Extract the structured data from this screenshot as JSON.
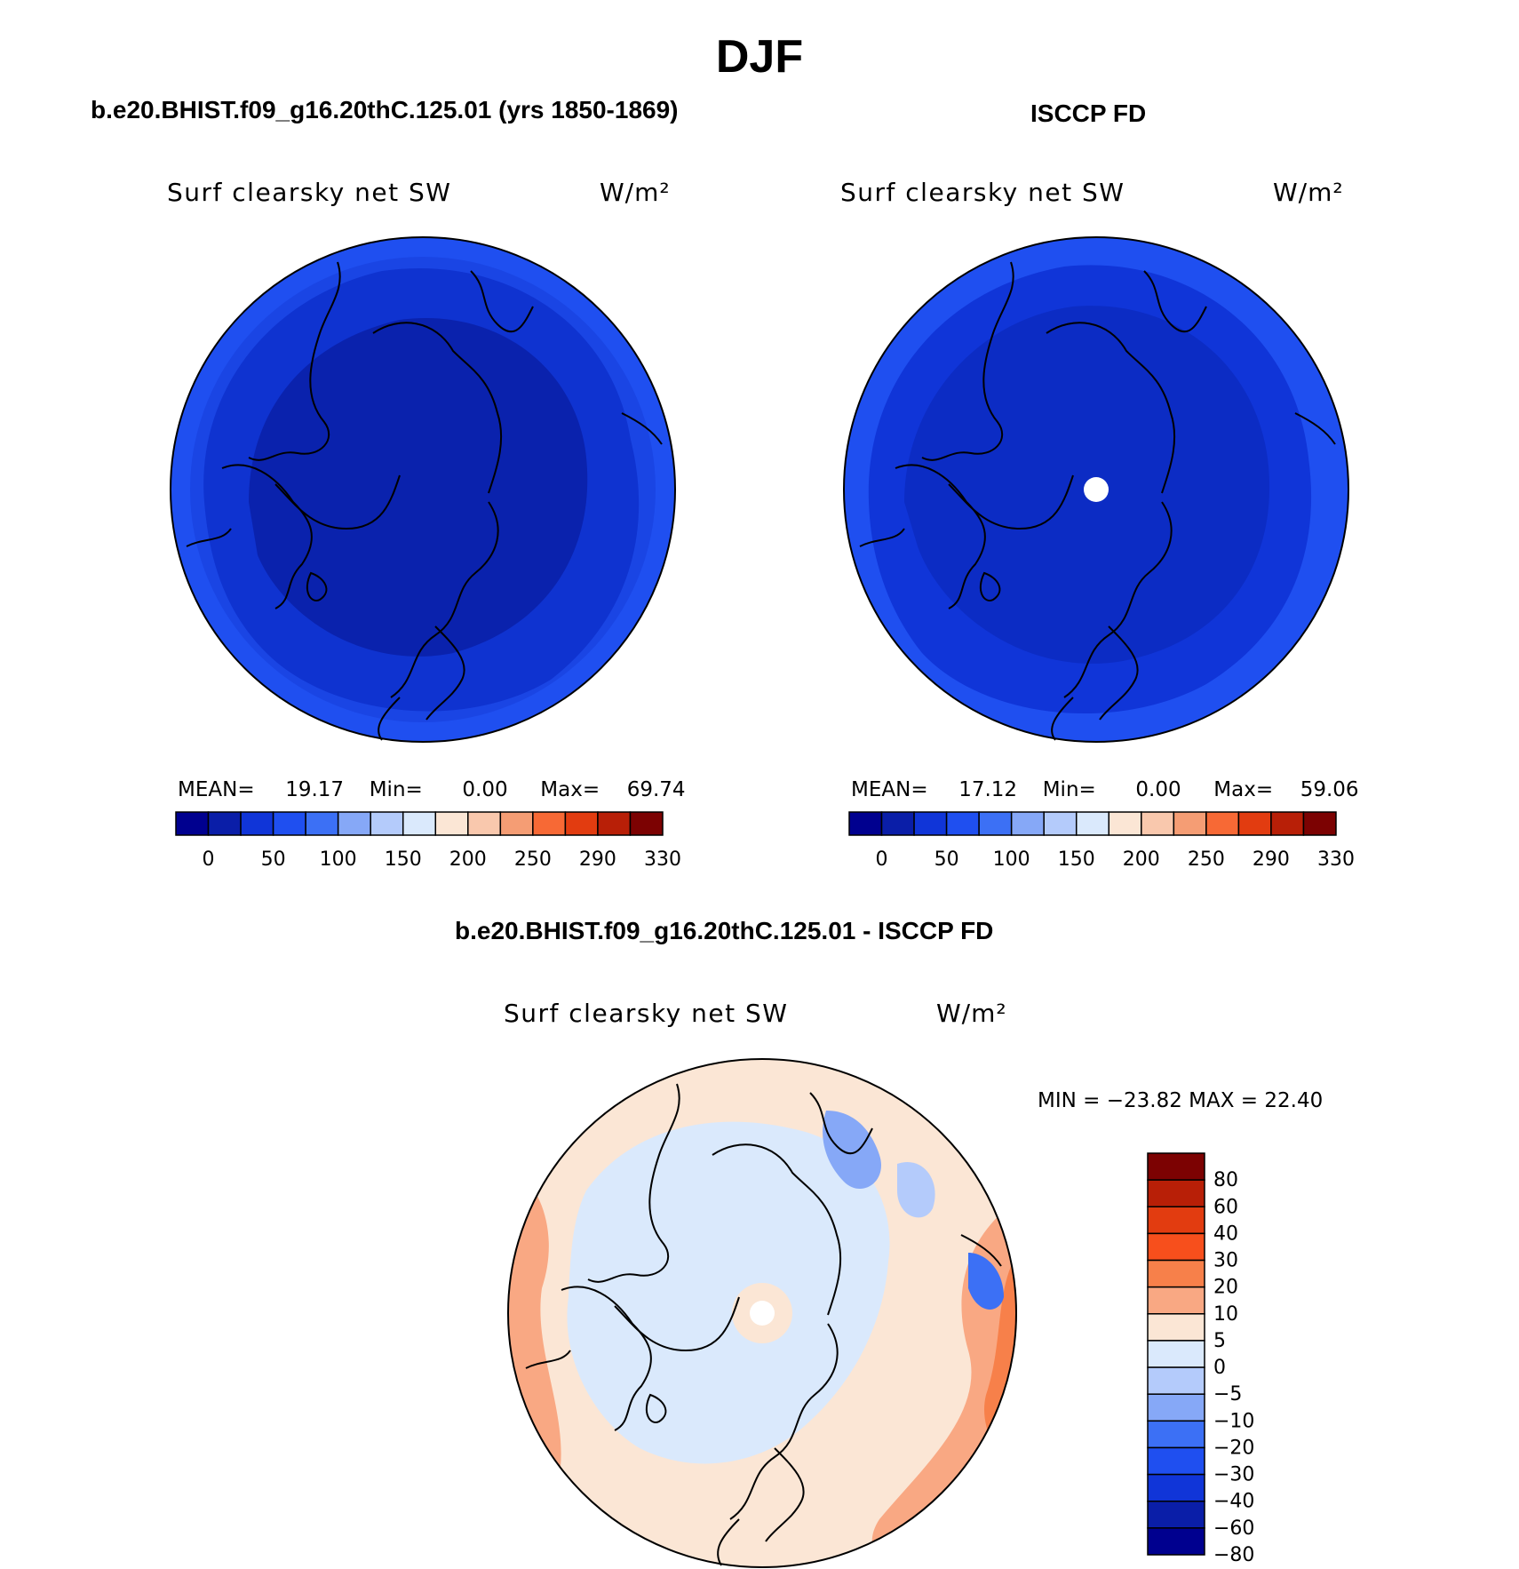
{
  "figure": {
    "title": "DJF"
  },
  "panels": [
    {
      "id": "model",
      "title": "b.e20.BHIST.f09_g16.20thC.125.01 (yrs 1850-1869)",
      "variable": "Surf clearsky net SW",
      "units": "W/m²",
      "stats": {
        "mean_label": "MEAN=",
        "mean": "19.17",
        "min_label": "Min=",
        "min": "0.00",
        "max_label": "Max=",
        "max": "69.74"
      }
    },
    {
      "id": "obs",
      "title": "ISCCP FD",
      "variable": "Surf clearsky net SW",
      "units": "W/m²",
      "stats": {
        "mean_label": "MEAN=",
        "mean": "17.12",
        "min_label": "Min=",
        "min": "0.00",
        "max_label": "Max=",
        "max": "59.06"
      }
    },
    {
      "id": "diff",
      "title": "b.e20.BHIST.f09_g16.20thC.125.01 - ISCCP FD",
      "variable": "Surf clearsky net SW",
      "units": "W/m²",
      "stats_text": "MIN = −23.82 MAX =  22.40"
    }
  ],
  "colorbars": {
    "absolute": {
      "colors": [
        "#00008f",
        "#0a1ea8",
        "#1035d8",
        "#1f4ff0",
        "#3c70f5",
        "#86a8f7",
        "#b4cbfb",
        "#dae9fc",
        "#fbe6d5",
        "#f9c8ad",
        "#f59d74",
        "#f76935",
        "#e23c10",
        "#b81f07",
        "#7c0202"
      ],
      "tick_labels": [
        "0",
        "50",
        "100",
        "150",
        "200",
        "250",
        "290",
        "330"
      ]
    },
    "difference": {
      "colors_top_to_bottom": [
        "#7c0202",
        "#b81f07",
        "#e23c10",
        "#f74f1c",
        "#f7804a",
        "#f9a883",
        "#fbe6d5",
        "#dae9fc",
        "#b4cbfb",
        "#86a8f7",
        "#3c70f5",
        "#1f4ff0",
        "#1035d8",
        "#0a1ea8",
        "#00008f"
      ],
      "tick_labels": [
        "80",
        "60",
        "40",
        "30",
        "20",
        "10",
        "5",
        "0",
        "−5",
        "−10",
        "−20",
        "−30",
        "−40",
        "−60",
        "−80"
      ]
    }
  }
}
